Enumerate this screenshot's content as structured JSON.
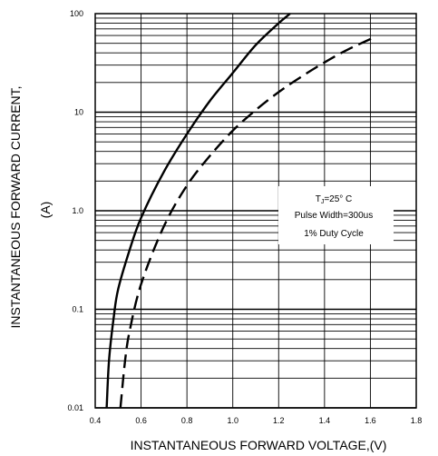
{
  "chart_data": {
    "type": "line",
    "xlabel": "INSTANTANEOUS FORWARD VOLTAGE,(V)",
    "ylabel": "INSTANTANEOUS FORWARD CURRENT,",
    "ylabel_unit": "(A)",
    "xlim": [
      0.4,
      1.8
    ],
    "ylim": [
      0.01,
      100
    ],
    "yscale": "log",
    "x_ticks": [
      "0.4",
      "0.6",
      "0.8",
      "1.0",
      "1.2",
      "1.4",
      "1.6",
      "1.8"
    ],
    "y_ticks": [
      "0.01",
      "0.1",
      "1.0",
      "10",
      "100"
    ],
    "grid": true,
    "annotation": {
      "line1_prefix": "T",
      "line1_sub": "J",
      "line1_rest": "=25° C",
      "line2": "Pulse Width=300us",
      "line3": "1% Duty Cycle"
    },
    "series": [
      {
        "style": "solid",
        "x": [
          0.45,
          0.46,
          0.48,
          0.5,
          0.55,
          0.6,
          0.7,
          0.8,
          0.9,
          1.0,
          1.1,
          1.2,
          1.25
        ],
        "y": [
          0.01,
          0.03,
          0.08,
          0.16,
          0.4,
          0.85,
          2.5,
          6.0,
          13,
          25,
          48,
          80,
          100
        ]
      },
      {
        "style": "dashed",
        "x": [
          0.51,
          0.53,
          0.55,
          0.6,
          0.7,
          0.8,
          0.9,
          1.0,
          1.1,
          1.2,
          1.3,
          1.4,
          1.5,
          1.62
        ],
        "y": [
          0.01,
          0.03,
          0.06,
          0.18,
          0.7,
          1.8,
          3.6,
          6.5,
          10.5,
          16,
          23,
          32,
          43,
          58
        ]
      }
    ]
  }
}
